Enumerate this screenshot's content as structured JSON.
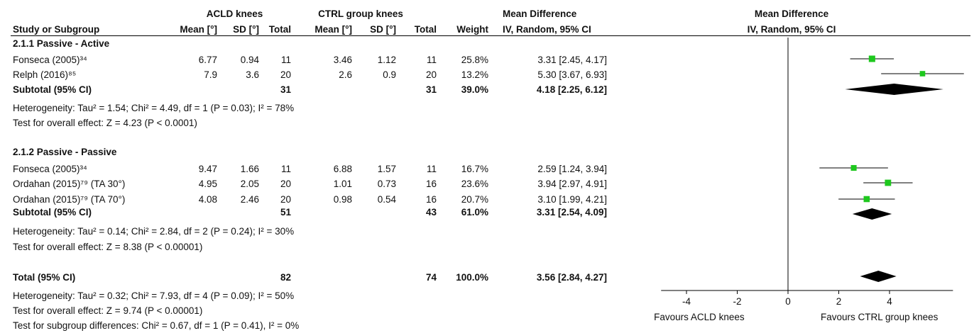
{
  "header": {
    "group1": "ACLD knees",
    "group2": "CTRL group knees",
    "md_table": "Mean Difference",
    "md_plot": "Mean Difference",
    "col_study": "Study or Subgroup",
    "col_mean1": "Mean [°]",
    "col_sd1": "SD [°]",
    "col_total1": "Total",
    "col_mean2": "Mean [°]",
    "col_sd2": "SD [°]",
    "col_total2": "Total",
    "col_weight": "Weight",
    "col_ci": "IV, Random, 95% CI",
    "col_ci_plot": "IV, Random, 95% CI"
  },
  "subgroups": [
    {
      "title": "2.1.1 Passive - Active",
      "studies": [
        {
          "name": "Fonseca (2005)³⁴",
          "mean1": "6.77",
          "sd1": "0.94",
          "n1": "11",
          "mean2": "3.46",
          "sd2": "1.12",
          "n2": "11",
          "weight": "25.8%",
          "ci_text": "3.31 [2.45, 4.17]"
        },
        {
          "name": "Relph (2016)⁸⁵",
          "mean1": "7.9",
          "sd1": "3.6",
          "n1": "20",
          "mean2": "2.6",
          "sd2": "0.9",
          "n2": "20",
          "weight": "13.2%",
          "ci_text": "5.30 [3.67, 6.93]"
        }
      ],
      "subtotal": {
        "label": "Subtotal (95% CI)",
        "n1": "31",
        "n2": "31",
        "weight": "39.0%",
        "ci_text": "4.18 [2.25, 6.12]"
      },
      "heterogeneity": "Heterogeneity: Tau² = 1.54; Chi² = 4.49, df = 1 (P = 0.03); I² = 78%",
      "overall": "Test for overall effect: Z = 4.23 (P < 0.0001)"
    },
    {
      "title": "2.1.2 Passive - Passive",
      "studies": [
        {
          "name": "Fonseca (2005)³⁴",
          "mean1": "9.47",
          "sd1": "1.66",
          "n1": "11",
          "mean2": "6.88",
          "sd2": "1.57",
          "n2": "11",
          "weight": "16.7%",
          "ci_text": "2.59 [1.24, 3.94]"
        },
        {
          "name": "Ordahan (2015)⁷⁹ (TA 30°)",
          "mean1": "4.95",
          "sd1": "2.05",
          "n1": "20",
          "mean2": "1.01",
          "sd2": "0.73",
          "n2": "16",
          "weight": "23.6%",
          "ci_text": "3.94 [2.97, 4.91]"
        },
        {
          "name": "Ordahan (2015)⁷⁹ (TA 70°)",
          "mean1": "4.08",
          "sd1": "2.46",
          "n1": "20",
          "mean2": "0.98",
          "sd2": "0.54",
          "n2": "16",
          "weight": "20.7%",
          "ci_text": "3.10 [1.99, 4.21]"
        }
      ],
      "subtotal": {
        "label": "Subtotal (95% CI)",
        "n1": "51",
        "n2": "43",
        "weight": "61.0%",
        "ci_text": "3.31 [2.54, 4.09]"
      },
      "heterogeneity": "Heterogeneity: Tau² = 0.14; Chi² = 2.84, df = 2 (P = 0.24); I² = 30%",
      "overall": "Test for overall effect: Z = 8.38 (P < 0.00001)"
    }
  ],
  "total": {
    "label": "Total (95% CI)",
    "n1": "82",
    "n2": "74",
    "weight": "100.0%",
    "ci_text": "3.56 [2.84, 4.27]",
    "heterogeneity": "Heterogeneity: Tau² = 0.32; Chi² = 7.93, df = 4 (P = 0.09); I² = 50%",
    "overall": "Test for overall effect: Z = 9.74 (P < 0.00001)",
    "subgroup_diff": "Test for subgroup differences: Chi² = 0.67, df = 1 (P = 0.41), I² = 0%"
  },
  "axis": {
    "favours_left": "Favours ACLD knees",
    "favours_right": "Favours CTRL group knees"
  },
  "colors": {
    "study_marker": "#1ec81e",
    "diamond": "#000000",
    "lines": "#000000"
  },
  "chart_data": {
    "type": "forest",
    "xlim": [
      -5,
      6.5
    ],
    "xticks": [
      -4,
      -2,
      0,
      2,
      4
    ],
    "studies": [
      {
        "label": "Fonseca (2005)³⁴",
        "subgroup": "2.1.1 Passive - Active",
        "md": 3.31,
        "ci": [
          2.45,
          4.17
        ],
        "weight": 25.8
      },
      {
        "label": "Relph (2016)⁸⁵",
        "subgroup": "2.1.1 Passive - Active",
        "md": 5.3,
        "ci": [
          3.67,
          6.93
        ],
        "weight": 13.2
      },
      {
        "label": "Fonseca (2005)³⁴",
        "subgroup": "2.1.2 Passive - Passive",
        "md": 2.59,
        "ci": [
          1.24,
          3.94
        ],
        "weight": 16.7
      },
      {
        "label": "Ordahan (2015)⁷⁹ (TA 30°)",
        "subgroup": "2.1.2 Passive - Passive",
        "md": 3.94,
        "ci": [
          2.97,
          4.91
        ],
        "weight": 23.6
      },
      {
        "label": "Ordahan (2015)⁷⁹ (TA 70°)",
        "subgroup": "2.1.2 Passive - Passive",
        "md": 3.1,
        "ci": [
          1.99,
          4.21
        ],
        "weight": 20.7
      }
    ],
    "pooled": [
      {
        "label": "Subtotal (95% CI)",
        "subgroup": "2.1.1 Passive - Active",
        "md": 4.18,
        "ci": [
          2.25,
          6.12
        ]
      },
      {
        "label": "Subtotal (95% CI)",
        "subgroup": "2.1.2 Passive - Passive",
        "md": 3.31,
        "ci": [
          2.54,
          4.09
        ]
      },
      {
        "label": "Total (95% CI)",
        "md": 3.56,
        "ci": [
          2.84,
          4.27
        ]
      }
    ]
  }
}
